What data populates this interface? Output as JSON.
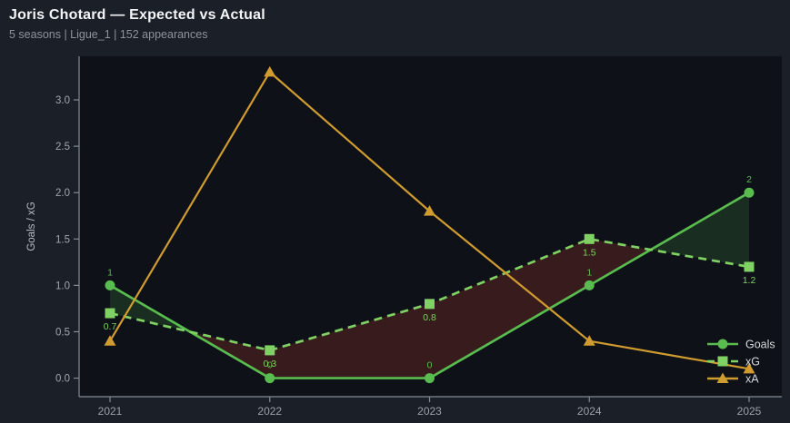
{
  "header": {
    "title": "Joris Chotard — Expected vs Actual",
    "subtitle": "5 seasons | Ligue_1 | 152 appearances"
  },
  "colors": {
    "page_bg": "#1b1f27",
    "plot_bg": "#0e1117",
    "spine": "#858c95",
    "goals": "#58bc4e",
    "xg": "#7fd163",
    "xa": "#d09b2f",
    "fill_goals_above_xg": "rgba(90,190,80,0.16)",
    "fill_xg_above_goals": "rgba(205,65,55,0.22)"
  },
  "chart_data": {
    "type": "line",
    "title": "Joris Chotard — Expected vs Actual",
    "xlabel": "",
    "ylabel": "Goals / xG",
    "x_tick_labels": [
      "2021",
      "2022",
      "2023",
      "2024",
      "2025"
    ],
    "y_ticks": [
      0.0,
      0.5,
      1.0,
      1.5,
      2.0,
      2.5,
      3.0
    ],
    "y_tick_labels": [
      "0.0",
      "0.5",
      "1.0",
      "1.5",
      "2.0",
      "2.5",
      "3.0"
    ],
    "ylim": [
      -0.2,
      3.47
    ],
    "grid": false,
    "legend_position": "lower right",
    "series": [
      {
        "name": "Goals",
        "values": [
          1,
          0,
          0,
          1,
          2
        ],
        "point_labels": [
          "1",
          "0",
          "0",
          "1",
          "2"
        ],
        "label_position": "above",
        "color": "#58bc4e",
        "marker": "circle",
        "line_style": "solid"
      },
      {
        "name": "xG",
        "values": [
          0.7,
          0.3,
          0.8,
          1.5,
          1.2
        ],
        "point_labels": [
          "0.7",
          "0.3",
          "0.8",
          "1.5",
          "1.2"
        ],
        "label_position": "below",
        "color": "#7fd163",
        "marker": "square",
        "line_style": "dashed"
      },
      {
        "name": "xA",
        "values": [
          0.4,
          3.3,
          1.8,
          0.4,
          0.1
        ],
        "point_labels": [],
        "label_position": "none",
        "color": "#d09b2f",
        "marker": "triangle",
        "line_style": "solid"
      }
    ],
    "fill_between": {
      "series_a": "Goals",
      "series_b": "xG",
      "a_above_color": "rgba(90,190,80,0.16)",
      "b_above_color": "rgba(205,65,55,0.22)"
    }
  }
}
